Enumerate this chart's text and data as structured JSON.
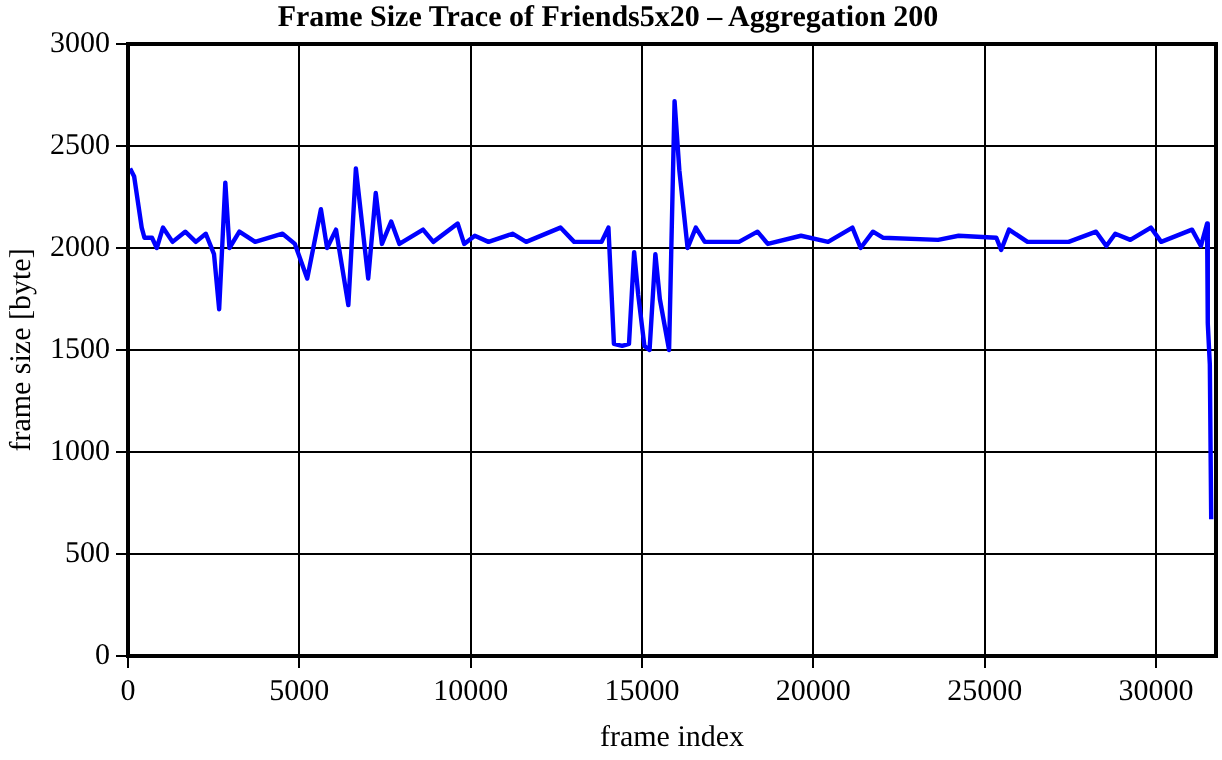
{
  "chart_data": {
    "type": "line",
    "title": "Frame Size Trace of Friends5x20 – Aggregation 200",
    "xlabel": "frame index",
    "ylabel": "frame size [byte]",
    "xlim": [
      0,
      31750
    ],
    "xticks": [
      0,
      5000,
      10000,
      15000,
      20000,
      25000,
      30000
    ],
    "ylim": [
      0,
      3000
    ],
    "yticks": [
      0,
      500,
      1000,
      1500,
      2000,
      2500,
      3000
    ],
    "grid": true,
    "legend": false,
    "marker": "none",
    "line_style": "solid",
    "series": [
      {
        "color": "#0000ff",
        "x": [
          60,
          180,
          400,
          480,
          700,
          840,
          1020,
          1300,
          1670,
          1980,
          2270,
          2510,
          2660,
          2840,
          2960,
          3250,
          3710,
          4510,
          4870,
          5230,
          5630,
          5810,
          6070,
          6430,
          6650,
          7010,
          7230,
          7410,
          7680,
          7920,
          8610,
          8910,
          9620,
          9810,
          10120,
          10520,
          11220,
          11620,
          12620,
          13020,
          13820,
          14020,
          14180,
          14420,
          14620,
          14770,
          14890,
          15070,
          15220,
          15390,
          15520,
          15790,
          15950,
          16090,
          16330,
          16570,
          16830,
          17830,
          18370,
          18670,
          19640,
          20430,
          21140,
          21380,
          21740,
          22040,
          23640,
          24240,
          25340,
          25480,
          25710,
          26250,
          27450,
          28250,
          28550,
          28810,
          29250,
          29850,
          30150,
          31050,
          31310,
          31490,
          31510,
          31570,
          31610
        ],
        "values": [
          2390,
          2350,
          2100,
          2050,
          2050,
          2000,
          2100,
          2030,
          2080,
          2030,
          2070,
          1970,
          1700,
          2320,
          2000,
          2080,
          2030,
          2070,
          2020,
          1850,
          2190,
          2000,
          2090,
          1720,
          2390,
          1850,
          2270,
          2020,
          2130,
          2020,
          2090,
          2030,
          2120,
          2020,
          2060,
          2030,
          2070,
          2030,
          2100,
          2030,
          2030,
          2100,
          1530,
          1520,
          1530,
          1980,
          1770,
          1520,
          1500,
          1970,
          1750,
          1500,
          2720,
          2380,
          2000,
          2100,
          2030,
          2030,
          2080,
          2020,
          2060,
          2030,
          2100,
          2000,
          2080,
          2050,
          2040,
          2060,
          2050,
          1990,
          2090,
          2030,
          2030,
          2080,
          2010,
          2070,
          2040,
          2100,
          2030,
          2090,
          2010,
          2120,
          1630,
          1430,
          670
        ]
      }
    ]
  }
}
